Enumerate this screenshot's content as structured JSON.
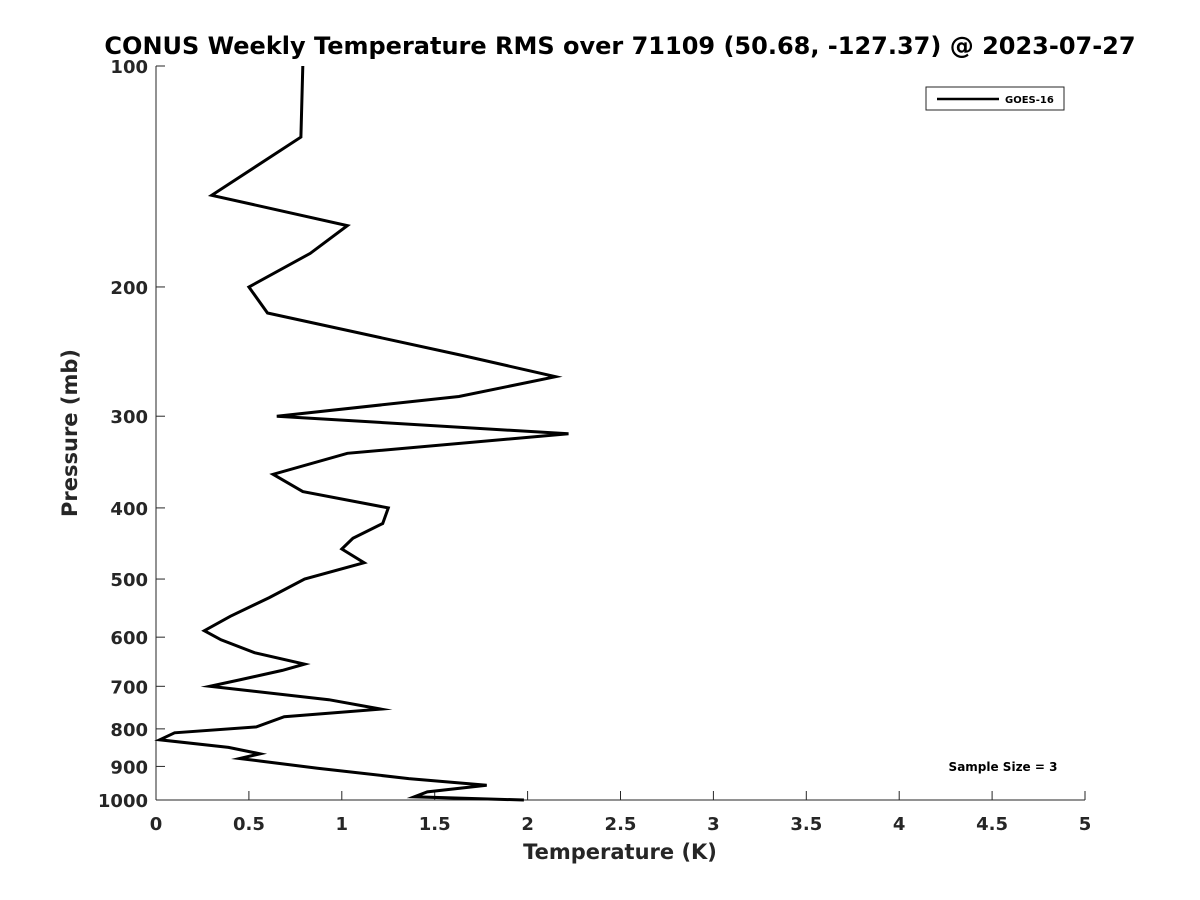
{
  "chart_data": {
    "type": "line",
    "title": "CONUS Weekly Temperature RMS over 71109 (50.68, -127.37) @ 2023-07-27",
    "xlabel": "Temperature (K)",
    "ylabel": "Pressure (mb)",
    "xlim": [
      0,
      5
    ],
    "ylim": [
      100,
      1000
    ],
    "y_scale": "log",
    "y_reversed": true,
    "grid": false,
    "legend_position": "top-right",
    "x_ticks": [
      0,
      0.5,
      1,
      1.5,
      2,
      2.5,
      3,
      3.5,
      4,
      4.5,
      5
    ],
    "x_tick_labels": [
      "0",
      "0.5",
      "1",
      "1.5",
      "2",
      "2.5",
      "3",
      "3.5",
      "4",
      "4.5",
      "5"
    ],
    "y_ticks": [
      100,
      200,
      300,
      400,
      500,
      600,
      700,
      800,
      900,
      1000
    ],
    "y_tick_labels": [
      "100",
      "200",
      "300",
      "400",
      "500",
      "600",
      "700",
      "800",
      "900",
      "1000"
    ],
    "annotation": "Sample Size = 3",
    "series": [
      {
        "name": "GOES-16",
        "color": "#000000",
        "points": [
          [
            0.79,
            100
          ],
          [
            0.78,
            125
          ],
          [
            0.3,
            150
          ],
          [
            1.03,
            165
          ],
          [
            0.83,
            180
          ],
          [
            0.5,
            200
          ],
          [
            0.6,
            217
          ],
          [
            1.65,
            248
          ],
          [
            2.15,
            265
          ],
          [
            1.63,
            282
          ],
          [
            0.65,
            300
          ],
          [
            2.22,
            317
          ],
          [
            1.03,
            337
          ],
          [
            0.63,
            360
          ],
          [
            0.79,
            380
          ],
          [
            1.25,
            400
          ],
          [
            1.22,
            420
          ],
          [
            1.06,
            440
          ],
          [
            1.0,
            455
          ],
          [
            1.12,
            475
          ],
          [
            0.8,
            500
          ],
          [
            0.61,
            530
          ],
          [
            0.4,
            562
          ],
          [
            0.26,
            588
          ],
          [
            0.35,
            605
          ],
          [
            0.53,
            630
          ],
          [
            0.8,
            653
          ],
          [
            0.68,
            666
          ],
          [
            0.45,
            686
          ],
          [
            0.29,
            700
          ],
          [
            0.93,
            730
          ],
          [
            1.21,
            752
          ],
          [
            0.69,
            770
          ],
          [
            0.54,
            795
          ],
          [
            0.1,
            810
          ],
          [
            0.02,
            828
          ],
          [
            0.39,
            848
          ],
          [
            0.56,
            865
          ],
          [
            0.45,
            878
          ],
          [
            0.87,
            905
          ],
          [
            1.36,
            935
          ],
          [
            1.78,
            955
          ],
          [
            1.46,
            975
          ],
          [
            1.39,
            990
          ],
          [
            1.98,
            1000
          ]
        ]
      }
    ]
  }
}
